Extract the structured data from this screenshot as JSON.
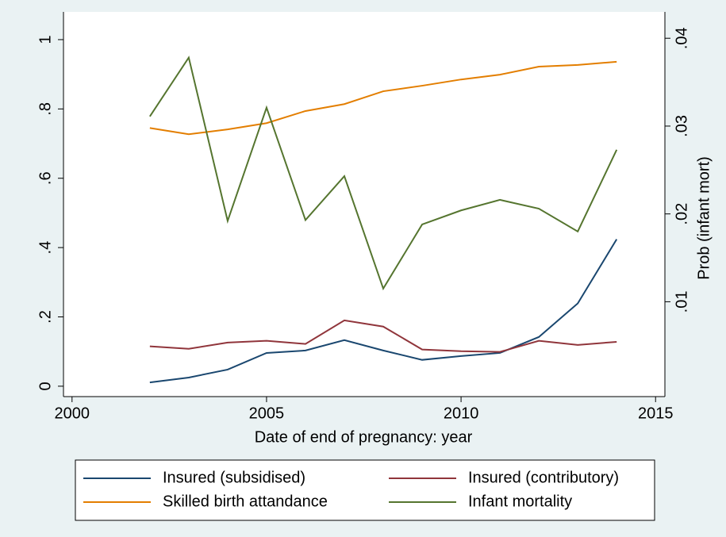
{
  "chart_data": {
    "type": "line",
    "x_label": "Date of end of pregnancy: year",
    "y2_label": "Prob (infant mort)",
    "x": [
      2002,
      2003,
      2004,
      2005,
      2006,
      2007,
      2008,
      2009,
      2010,
      2011,
      2012,
      2013,
      2014
    ],
    "xlim": [
      1999.78,
      2015.24
    ],
    "xticks": [
      2000,
      2005,
      2010,
      2015
    ],
    "ylim": [
      -0.03,
      1.08
    ],
    "yticks": [
      0,
      {
        "value": 0.2,
        "label": ".2"
      },
      {
        "value": 0.4,
        "label": ".4"
      },
      {
        "value": 0.6,
        "label": ".6"
      },
      {
        "value": 0.8,
        "label": ".8"
      },
      1
    ],
    "y2lim": [
      -0.0008,
      0.043
    ],
    "y2ticks": [
      {
        "value": 0.01,
        "label": ".01"
      },
      {
        "value": 0.02,
        "label": ".02"
      },
      {
        "value": 0.03,
        "label": ".03"
      },
      {
        "value": 0.04,
        "label": ".04"
      }
    ],
    "grid": false,
    "legend_position": "bottom",
    "series": [
      {
        "name": "Insured (subsidised)",
        "color": "#1a476f",
        "values": [
          0.011,
          0.025,
          0.048,
          0.096,
          0.103,
          0.133,
          0.103,
          0.076,
          0.087,
          0.096,
          0.142,
          0.239,
          0.424
        ]
      },
      {
        "name": "Insured (contributory)",
        "color": "#90353b",
        "values": [
          0.115,
          0.108,
          0.126,
          0.131,
          0.122,
          0.19,
          0.172,
          0.106,
          0.101,
          0.099,
          0.131,
          0.119,
          0.128
        ]
      },
      {
        "name": "Skilled birth attandance",
        "color": "#e37e00",
        "values": [
          0.745,
          0.727,
          0.741,
          0.759,
          0.794,
          0.814,
          0.851,
          0.867,
          0.885,
          0.899,
          0.922,
          0.927,
          0.936
        ]
      },
      {
        "name": "Infant mortality",
        "color": "#55752f",
        "axis": "y2",
        "values": [
          0.0311,
          0.0378,
          0.0192,
          0.0321,
          0.0193,
          0.0243,
          0.0115,
          0.0188,
          0.0204,
          0.0216,
          0.0206,
          0.018,
          0.0273
        ]
      }
    ]
  }
}
